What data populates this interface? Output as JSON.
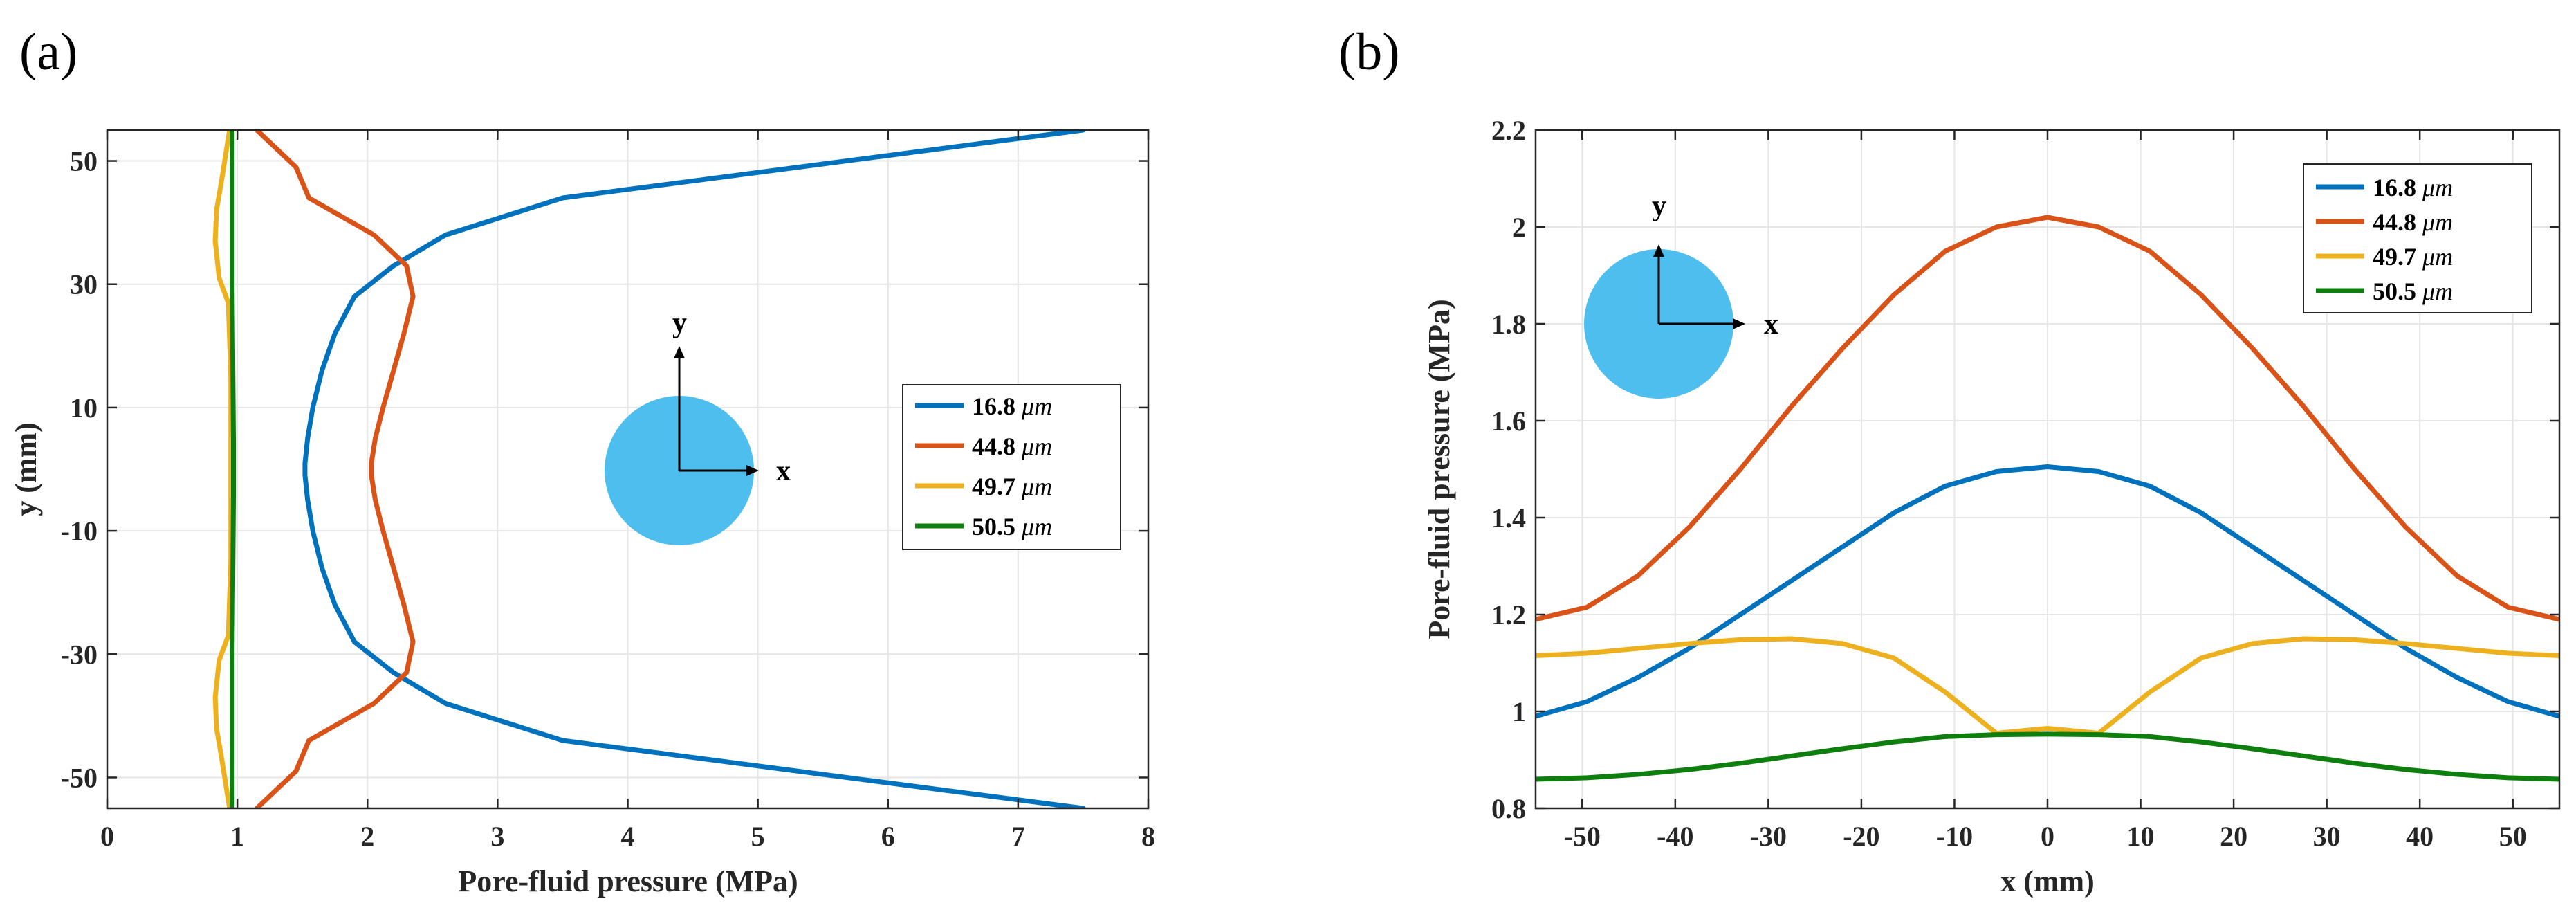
{
  "colors": {
    "blue": "#0072BD",
    "orange": "#D95319",
    "yellow": "#EDB120",
    "green": "#0E7F0E",
    "circle": "#4DBEEE",
    "grid": "#e6e6e6",
    "axis": "#262626"
  },
  "chart_data": [
    {
      "type": "line",
      "panel_label": "(a)",
      "xlabel": "Pore-fluid pressure (MPa)",
      "ylabel": "y (mm)",
      "xlim": [
        0,
        8
      ],
      "ylim": [
        -55,
        55
      ],
      "xticks": [
        0,
        1,
        2,
        3,
        4,
        5,
        6,
        7,
        8
      ],
      "xtick_labels": [
        "0",
        "1",
        "2",
        "3",
        "4",
        "5",
        "6",
        "7",
        "8"
      ],
      "yticks": [
        50,
        30,
        10,
        -10,
        -30,
        -50
      ],
      "ytick_labels": [
        "50",
        "30",
        "10",
        "-10",
        "-30",
        "-50"
      ],
      "grid": true,
      "legend_position": "center-right",
      "inset": {
        "x_label": "x",
        "y_label": "y"
      },
      "series": [
        {
          "name": "16.8 μm",
          "legend_value": "16.8",
          "legend_unit": "μm",
          "color_key": "blue",
          "x": [
            7.5,
            3.5,
            2.6,
            2.2,
            1.9,
            1.75,
            1.65,
            1.58,
            1.54,
            1.52,
            1.52,
            1.54,
            1.58,
            1.65,
            1.75,
            1.9,
            2.2,
            2.6,
            3.5,
            7.5
          ],
          "y": [
            55,
            44,
            38,
            33,
            28,
            22,
            16,
            10,
            5,
            1,
            -1,
            -5,
            -10,
            -16,
            -22,
            -28,
            -33,
            -38,
            -44,
            -55
          ]
        },
        {
          "name": "44.8 μm",
          "legend_value": "44.8",
          "legend_unit": "μm",
          "color_key": "orange",
          "x": [
            1.15,
            1.45,
            1.55,
            2.05,
            2.3,
            2.35,
            2.28,
            2.2,
            2.12,
            2.06,
            2.03,
            2.03,
            2.06,
            2.12,
            2.2,
            2.28,
            2.35,
            2.3,
            2.05,
            1.55,
            1.45,
            1.15
          ],
          "y": [
            55,
            49,
            44,
            38,
            33,
            28,
            22,
            16,
            10,
            5,
            1,
            -1,
            -5,
            -10,
            -16,
            -22,
            -28,
            -33,
            -38,
            -44,
            -49,
            -55
          ]
        },
        {
          "name": "49.7 μm",
          "legend_value": "49.7",
          "legend_unit": "μm",
          "color_key": "yellow",
          "x": [
            0.94,
            0.88,
            0.84,
            0.83,
            0.86,
            0.93,
            0.95,
            0.95,
            0.95,
            0.95,
            0.95,
            0.93,
            0.86,
            0.83,
            0.84,
            0.88,
            0.94
          ],
          "y": [
            55,
            47,
            42,
            37,
            31,
            27,
            15,
            5,
            0,
            -5,
            -15,
            -27,
            -31,
            -37,
            -42,
            -47,
            -55
          ]
        },
        {
          "name": "50.5 μm",
          "legend_value": "50.5",
          "legend_unit": "μm",
          "color_key": "green",
          "x": [
            0.96,
            0.96,
            0.97,
            0.97,
            0.96,
            0.96
          ],
          "y": [
            55,
            30,
            5,
            -5,
            -30,
            -55
          ]
        }
      ]
    },
    {
      "type": "line",
      "panel_label": "(b)",
      "xlabel": "x (mm)",
      "ylabel": "Pore-fluid pressure (MPa)",
      "xlim": [
        -55,
        55
      ],
      "ylim": [
        0.8,
        2.2
      ],
      "xticks": [
        -50,
        -40,
        -30,
        -20,
        -10,
        0,
        10,
        20,
        30,
        40,
        50
      ],
      "xtick_labels": [
        "-50",
        "-40",
        "-30",
        "-20",
        "-10",
        "0",
        "10",
        "20",
        "30",
        "40",
        "50"
      ],
      "yticks": [
        0.8,
        1,
        1.2,
        1.4,
        1.6,
        1.8,
        2,
        2.2
      ],
      "ytick_labels": [
        "0.8",
        "1",
        "1.2",
        "1.4",
        "1.6",
        "1.8",
        "2",
        "2.2"
      ],
      "grid": true,
      "legend_position": "top-right",
      "inset": {
        "x_label": "x",
        "y_label": "y"
      },
      "series": [
        {
          "name": "16.8 μm",
          "legend_value": "16.8",
          "legend_unit": "μm",
          "color_key": "blue",
          "x": [
            -55,
            -49.5,
            -44,
            -38.5,
            -33,
            -27.5,
            -22,
            -16.5,
            -11,
            -5.5,
            0,
            5.5,
            11,
            16.5,
            22,
            27.5,
            33,
            38.5,
            44,
            49.5,
            55
          ],
          "y": [
            0.99,
            1.02,
            1.07,
            1.13,
            1.2,
            1.27,
            1.34,
            1.41,
            1.465,
            1.495,
            1.505,
            1.495,
            1.465,
            1.41,
            1.34,
            1.27,
            1.2,
            1.13,
            1.07,
            1.02,
            0.99
          ]
        },
        {
          "name": "44.8 μm",
          "legend_value": "44.8",
          "legend_unit": "μm",
          "color_key": "orange",
          "x": [
            -55,
            -49.5,
            -44,
            -38.5,
            -33,
            -27.5,
            -22,
            -16.5,
            -11,
            -5.5,
            0,
            5.5,
            11,
            16.5,
            22,
            27.5,
            33,
            38.5,
            44,
            49.5,
            55
          ],
          "y": [
            1.19,
            1.215,
            1.28,
            1.38,
            1.5,
            1.63,
            1.75,
            1.86,
            1.95,
            2.0,
            2.02,
            2.0,
            1.95,
            1.86,
            1.75,
            1.63,
            1.5,
            1.38,
            1.28,
            1.215,
            1.19
          ]
        },
        {
          "name": "49.7 μm",
          "legend_value": "49.7",
          "legend_unit": "μm",
          "color_key": "yellow",
          "x": [
            -55,
            -49.5,
            -44,
            -38.5,
            -33,
            -27.5,
            -22,
            -16.5,
            -11,
            -5.5,
            0,
            5.5,
            11,
            16.5,
            22,
            27.5,
            33,
            38.5,
            44,
            49.5,
            55
          ],
          "y": [
            1.115,
            1.12,
            1.13,
            1.14,
            1.148,
            1.15,
            1.14,
            1.11,
            1.04,
            0.955,
            0.965,
            0.955,
            1.04,
            1.11,
            1.14,
            1.15,
            1.148,
            1.14,
            1.13,
            1.12,
            1.115
          ]
        },
        {
          "name": "50.5 μm",
          "legend_value": "50.5",
          "legend_unit": "μm",
          "color_key": "green",
          "x": [
            -55,
            -49.5,
            -44,
            -38.5,
            -33,
            -27.5,
            -22,
            -16.5,
            -11,
            -5.5,
            0,
            5.5,
            11,
            16.5,
            22,
            27.5,
            33,
            38.5,
            44,
            49.5,
            55
          ],
          "y": [
            0.86,
            0.863,
            0.87,
            0.88,
            0.893,
            0.908,
            0.923,
            0.937,
            0.948,
            0.952,
            0.953,
            0.952,
            0.948,
            0.937,
            0.923,
            0.908,
            0.893,
            0.88,
            0.87,
            0.863,
            0.86
          ]
        }
      ]
    }
  ]
}
